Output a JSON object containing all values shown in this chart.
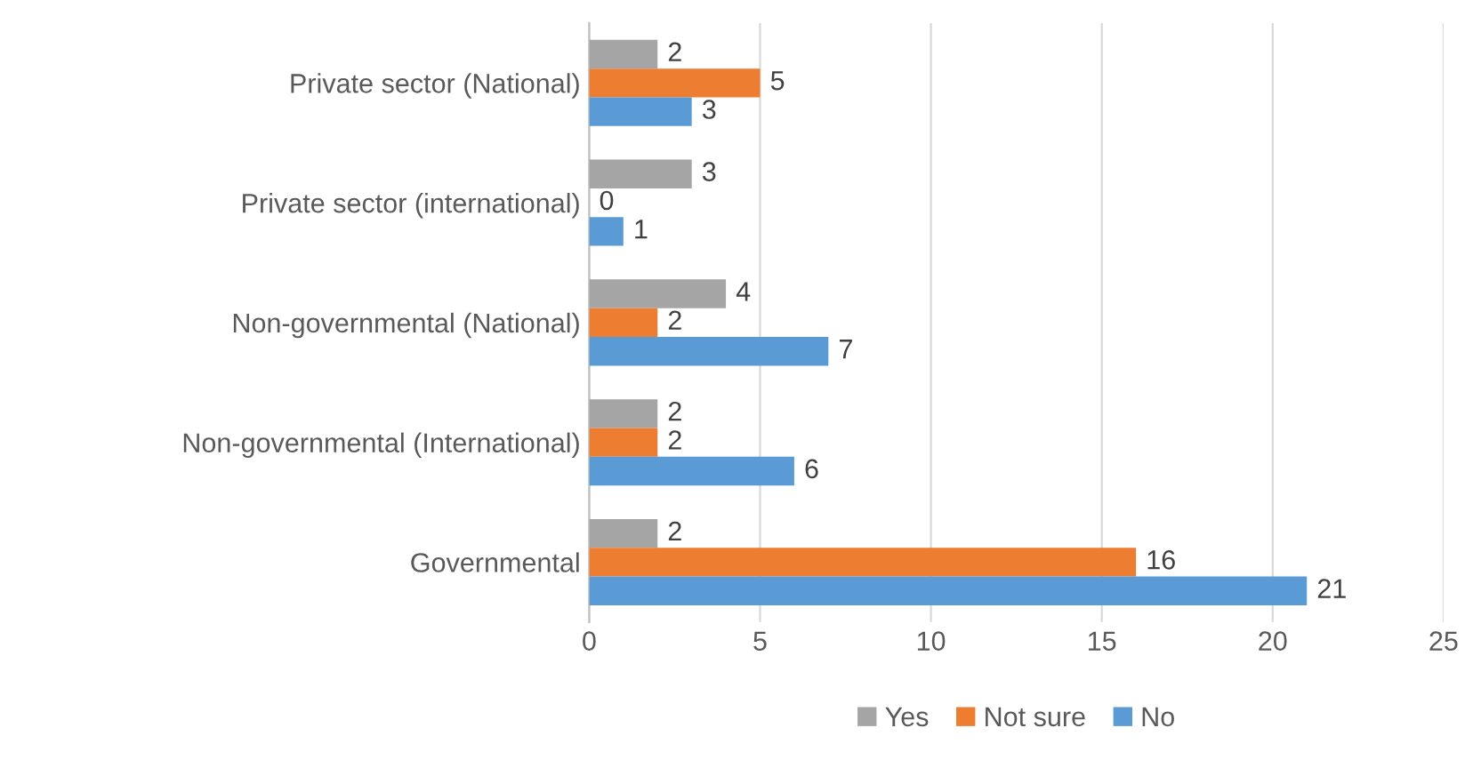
{
  "chart_data": {
    "type": "bar",
    "orientation": "horizontal",
    "categories": [
      "Private sector (National)",
      "Private sector (international)",
      "Non-governmental (National)",
      "Non-governmental (International)",
      "Governmental"
    ],
    "series": [
      {
        "name": "Yes",
        "color": "#a5a5a5",
        "values": [
          2,
          3,
          4,
          2,
          2
        ]
      },
      {
        "name": "Not sure",
        "color": "#ed7d31",
        "values": [
          5,
          0,
          2,
          2,
          16
        ]
      },
      {
        "name": "No",
        "color": "#5b9bd5",
        "values": [
          3,
          1,
          7,
          6,
          21
        ]
      }
    ],
    "xlim": [
      0,
      25
    ],
    "xticks": [
      0,
      5,
      10,
      15,
      20,
      25
    ],
    "grid": "x",
    "legend": "bottom",
    "data_labels": true
  }
}
